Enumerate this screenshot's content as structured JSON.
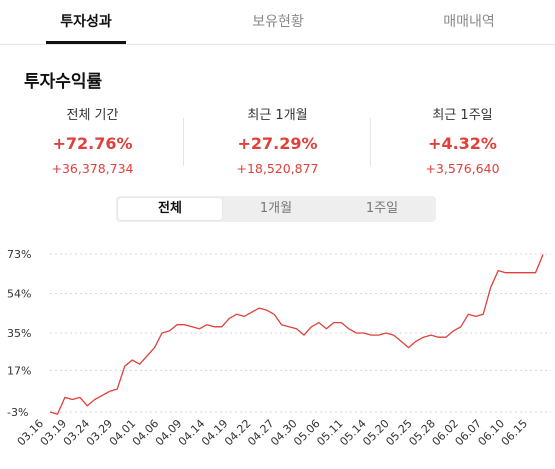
{
  "tabs": [
    {
      "label": "투자성과",
      "active": true
    },
    {
      "label": "보유현황",
      "active": false
    },
    {
      "label": "매매내역",
      "active": false
    }
  ],
  "section_title": "투자수익률",
  "stats": [
    {
      "label": "전체 기간",
      "pct": "+72.76%",
      "amount": "+36,378,734"
    },
    {
      "label": "최근 1개월",
      "pct": "+27.29%",
      "amount": "+18,520,877"
    },
    {
      "label": "최근 1주일",
      "pct": "+4.32%",
      "amount": "+3,576,640"
    }
  ],
  "period_buttons": [
    {
      "label": "전체",
      "active": true
    },
    {
      "label": "1개월",
      "active": false
    },
    {
      "label": "1주일",
      "active": false
    }
  ],
  "colors": {
    "accent": "#e0403a",
    "grid": "#d8d8d8"
  },
  "chart_data": {
    "type": "line",
    "yticks": [
      -3,
      17,
      35,
      54,
      73
    ],
    "ytick_labels": [
      "-3%",
      "17%",
      "35%",
      "54%",
      "73%"
    ],
    "ylim": [
      -3,
      73
    ],
    "grid": "horizontal-dashed",
    "xtick_labels": [
      "03.16",
      "03.19",
      "03.24",
      "03.29",
      "04.01",
      "04.06",
      "04.09",
      "04.14",
      "04.19",
      "04.22",
      "04.27",
      "04.30",
      "05.06",
      "05.11",
      "05.14",
      "05.20",
      "05.25",
      "05.28",
      "06.02",
      "06.07",
      "06.10",
      "06.15"
    ],
    "x_count": 67,
    "series": [
      {
        "values": [
          -3,
          -4,
          4,
          3,
          4,
          0,
          3,
          5,
          7,
          8,
          19,
          22,
          20,
          24,
          28,
          35,
          36,
          39,
          39,
          38,
          37,
          39,
          38,
          38,
          42,
          44,
          43,
          45,
          47,
          46,
          44,
          39,
          38,
          37,
          34,
          38,
          40,
          37,
          40,
          40,
          37,
          35,
          35,
          34,
          34,
          35,
          34,
          31,
          28,
          31,
          33,
          34,
          33,
          33,
          36,
          38,
          44,
          43,
          44,
          57,
          65,
          64,
          64,
          64,
          64,
          64,
          72.76
        ]
      }
    ]
  }
}
